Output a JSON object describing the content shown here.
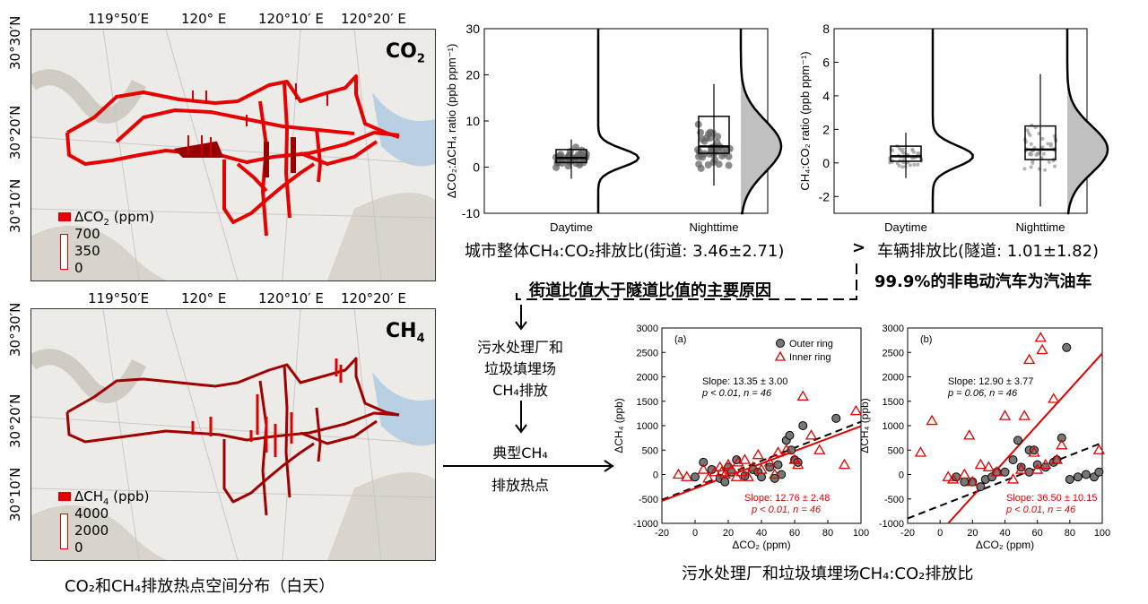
{
  "maps": {
    "co2": {
      "label_gas": "CO",
      "label_sub": "2",
      "lon_ticks": [
        "119°50′E",
        "120° E",
        "120°10′ E",
        "120°20′ E"
      ],
      "lat_ticks": [
        "30°30′N",
        "30°20′N",
        "30°10′N"
      ],
      "legend_title_pre": "ΔCO",
      "legend_title_sub": "2",
      "legend_title_post": " (ppm)",
      "legend_values": [
        "700",
        "350",
        "0"
      ]
    },
    "ch4": {
      "label_gas": "CH",
      "label_sub": "4",
      "lon_ticks": [
        "119°50′E",
        "120° E",
        "120°10′ E",
        "120°20′ E"
      ],
      "lat_ticks": [
        "30°30′N",
        "30°20′N",
        "30°10′N"
      ],
      "legend_title_pre": "ΔCH",
      "legend_title_sub": "4",
      "legend_title_post": " (ppb)",
      "legend_values": [
        "4000",
        "2000",
        "0"
      ]
    },
    "caption": "CO₂和CH₄排放热点空间分布（白天）"
  },
  "text": {
    "city_ratio": "城市整体CH₄:CO₂排放比(街道: 3.46±2.71)",
    "gt": ">",
    "vehicle_ratio": "车辆排放比(隧道: 1.01±1.82)",
    "gasoline": "99.9%的非电动汽车为汽油车",
    "reason": "街道比值大于隧道比值的主要原因",
    "source_1": "污水处理厂和",
    "source_2": "垃圾填埋场",
    "source_3": "CH₄排放",
    "hotspot_1": "典型CH₄",
    "hotspot_2": "排放热点",
    "bottom_caption": "污水处理厂和垃圾填埋场CH₄:CO₂排放比"
  },
  "chart_data": [
    {
      "type": "box",
      "ylabel": "ΔCO₂:ΔCH₄ ratio (ppb ppm⁻¹)",
      "ylim": [
        -10,
        30
      ],
      "yticks": [
        -10,
        0,
        10,
        20,
        30
      ],
      "categories": [
        "Daytime",
        "Nighttime"
      ],
      "boxes": [
        {
          "name": "Daytime",
          "q1": 1.0,
          "median": 2.0,
          "q3": 3.8,
          "whisker_low": -2.5,
          "whisker_high": 6.0
        },
        {
          "name": "Nighttime",
          "q1": 3.0,
          "median": 4.5,
          "q3": 11.0,
          "whisker_low": -4.0,
          "whisker_high": 18.0
        }
      ]
    },
    {
      "type": "box",
      "ylabel": "CH₄:CO₂ ratio (ppb ppm⁻¹)",
      "ylim": [
        -3,
        8
      ],
      "yticks": [
        -2,
        0,
        2,
        4,
        6,
        8
      ],
      "categories": [
        "Daytime",
        "Nighttime"
      ],
      "boxes": [
        {
          "name": "Daytime",
          "q1": 0.1,
          "median": 0.4,
          "q3": 1.0,
          "whisker_low": -0.9,
          "whisker_high": 1.8
        },
        {
          "name": "Nighttime",
          "q1": 0.2,
          "median": 0.8,
          "q3": 2.2,
          "whisker_low": -2.6,
          "whisker_high": 5.3
        }
      ]
    },
    {
      "type": "scatter",
      "panel_label": "(a)",
      "xlabel": "ΔCO₂ (ppm)",
      "ylabel": "ΔCH₄ (ppb)",
      "xlim": [
        -20,
        100
      ],
      "ylim": [
        -1000,
        3000
      ],
      "xticks": [
        -20,
        0,
        20,
        40,
        60,
        80,
        100
      ],
      "yticks": [
        -1000,
        -500,
        0,
        500,
        1000,
        1500,
        2000,
        2500,
        3000
      ],
      "legend": [
        "Outer ring",
        "Inner ring"
      ],
      "outer_text": {
        "slope": "Slope: 13.35 ± 3.00",
        "stats": "p < 0.01, n = 46"
      },
      "inner_text": {
        "slope": "Slope: 12.76 ± 2.48",
        "stats": "p < 0.01, n = 46"
      },
      "outer_fit": {
        "x": [
          -20,
          100
        ],
        "y": [
          -520,
          1080
        ]
      },
      "inner_fit": {
        "x": [
          -20,
          100
        ],
        "y": [
          -540,
          990
        ]
      },
      "outer_points": [
        [
          0,
          -50
        ],
        [
          5,
          250
        ],
        [
          10,
          100
        ],
        [
          15,
          -80
        ],
        [
          20,
          150
        ],
        [
          22,
          50
        ],
        [
          25,
          300
        ],
        [
          30,
          -30
        ],
        [
          35,
          100
        ],
        [
          38,
          50
        ],
        [
          40,
          -50
        ],
        [
          45,
          150
        ],
        [
          50,
          200
        ],
        [
          55,
          700
        ],
        [
          58,
          500
        ],
        [
          60,
          300
        ],
        [
          62,
          250
        ],
        [
          65,
          1000
        ],
        [
          57,
          800
        ],
        [
          85,
          1150
        ],
        [
          48,
          -80
        ],
        [
          52,
          0
        ],
        [
          18,
          -150
        ]
      ],
      "inner_points": [
        [
          -10,
          0
        ],
        [
          -5,
          -50
        ],
        [
          5,
          100
        ],
        [
          8,
          -80
        ],
        [
          12,
          50
        ],
        [
          15,
          150
        ],
        [
          18,
          0
        ],
        [
          20,
          200
        ],
        [
          22,
          100
        ],
        [
          25,
          -50
        ],
        [
          28,
          50
        ],
        [
          30,
          300
        ],
        [
          32,
          -50
        ],
        [
          35,
          150
        ],
        [
          38,
          400
        ],
        [
          40,
          100
        ],
        [
          45,
          250
        ],
        [
          48,
          0
        ],
        [
          50,
          450
        ],
        [
          55,
          500
        ],
        [
          60,
          300
        ],
        [
          62,
          200
        ],
        [
          65,
          1600
        ],
        [
          70,
          800
        ],
        [
          75,
          500
        ],
        [
          90,
          200
        ],
        [
          97,
          1300
        ],
        [
          16,
          50
        ],
        [
          26,
          250
        ]
      ]
    },
    {
      "type": "scatter",
      "panel_label": "(b)",
      "xlabel": "ΔCO₂ (ppm)",
      "ylabel": "ΔCH₄ (ppb)",
      "xlim": [
        -20,
        100
      ],
      "ylim": [
        -1000,
        3000
      ],
      "xticks": [
        -20,
        0,
        20,
        40,
        60,
        80,
        100
      ],
      "yticks": [
        -1000,
        -500,
        0,
        500,
        1000,
        1500,
        2000,
        2500,
        3000
      ],
      "outer_text": {
        "slope": "Slope: 12.90 ± 3.77",
        "stats": "p = 0.06, n = 46"
      },
      "inner_text": {
        "slope": "Slope: 36.50 ± 10.15",
        "stats": "p < 0.01, n = 46"
      },
      "outer_fit": {
        "x": [
          -20,
          100
        ],
        "y": [
          -900,
          650
        ]
      },
      "inner_fit": {
        "x": [
          5,
          100
        ],
        "y": [
          -1000,
          2480
        ]
      },
      "outer_points": [
        [
          10,
          -50
        ],
        [
          15,
          -150
        ],
        [
          20,
          -150
        ],
        [
          25,
          -250
        ],
        [
          28,
          -100
        ],
        [
          32,
          -50
        ],
        [
          35,
          50
        ],
        [
          40,
          50
        ],
        [
          45,
          300
        ],
        [
          48,
          700
        ],
        [
          50,
          150
        ],
        [
          55,
          500
        ],
        [
          58,
          500
        ],
        [
          60,
          200
        ],
        [
          65,
          150
        ],
        [
          70,
          250
        ],
        [
          72,
          300
        ],
        [
          75,
          750
        ],
        [
          78,
          2600
        ],
        [
          80,
          -100
        ],
        [
          85,
          -50
        ],
        [
          90,
          0
        ],
        [
          95,
          -50
        ],
        [
          98,
          50
        ],
        [
          55,
          50
        ]
      ],
      "inner_points": [
        [
          -12,
          450
        ],
        [
          -5,
          1100
        ],
        [
          5,
          -50
        ],
        [
          8,
          -100
        ],
        [
          15,
          0
        ],
        [
          18,
          800
        ],
        [
          20,
          -150
        ],
        [
          25,
          200
        ],
        [
          30,
          150
        ],
        [
          35,
          50
        ],
        [
          40,
          1200
        ],
        [
          45,
          -100
        ],
        [
          50,
          100
        ],
        [
          52,
          1200
        ],
        [
          55,
          2350
        ],
        [
          58,
          450
        ],
        [
          60,
          100
        ],
        [
          62,
          2800
        ],
        [
          63,
          2550
        ],
        [
          65,
          200
        ],
        [
          70,
          1550
        ],
        [
          72,
          300
        ],
        [
          75,
          600
        ],
        [
          98,
          500
        ]
      ]
    }
  ]
}
